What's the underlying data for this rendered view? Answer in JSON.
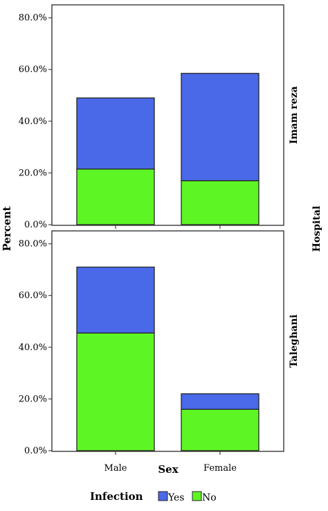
{
  "chart_data": {
    "type": "bar",
    "stacked": true,
    "categories": [
      "Male",
      "Female"
    ],
    "xlabel": "Sex",
    "ylabel": "Percent",
    "facet_label": "Hospital",
    "ylim": [
      0,
      85
    ],
    "yticks": [
      "0.0%",
      "20.0%",
      "40.0%",
      "60.0%",
      "80.0%"
    ],
    "ytick_values": [
      0,
      20,
      40,
      60,
      80
    ],
    "legend": {
      "title": "Infection",
      "position": "bottom",
      "entries": [
        {
          "label": "Yes",
          "color": "#4a69e8"
        },
        {
          "label": "No",
          "color": "#5ef525"
        }
      ]
    },
    "panels": [
      {
        "name": "Imam reza",
        "series": [
          {
            "name": "No",
            "color": "#5ef525",
            "values": [
              21.5,
              17.0
            ]
          },
          {
            "name": "Yes",
            "color": "#4a69e8",
            "values": [
              27.5,
              41.5
            ]
          }
        ]
      },
      {
        "name": "Taleghani",
        "series": [
          {
            "name": "No",
            "color": "#5ef525",
            "values": [
              45.5,
              16.0
            ]
          },
          {
            "name": "Yes",
            "color": "#4a69e8",
            "values": [
              25.5,
              6.0
            ]
          }
        ]
      }
    ]
  }
}
